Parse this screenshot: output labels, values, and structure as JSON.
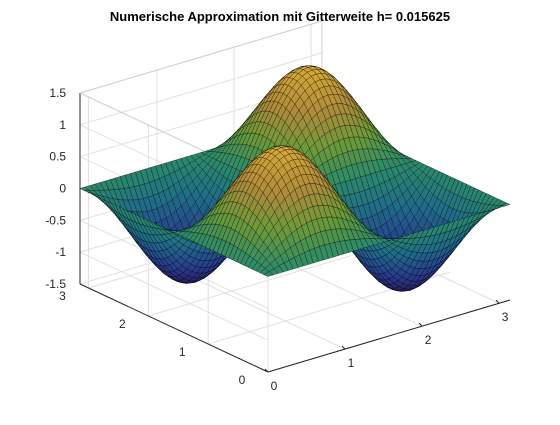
{
  "chart_data": {
    "type": "surface",
    "title": "Numerische Approximation mit Gitterweite h= 0.015625",
    "function": "sin(2x)·sin(2y)·(something ≈ 1.4 peak); rendered as sin(2x)*sin(2y)",
    "h": 0.015625,
    "xlim": [
      0,
      3.14159
    ],
    "ylim": [
      0,
      3.14159
    ],
    "zlim": [
      -1.5,
      1.5
    ],
    "x_ticks": [
      "0",
      "1",
      "2",
      "3"
    ],
    "y_ticks": [
      "0",
      "1",
      "2",
      "3"
    ],
    "z_ticks": [
      "1.5",
      "1",
      "0.5",
      "0",
      "-0.5",
      "-1",
      "-1.5"
    ],
    "amplitude": 1.4,
    "colormap": [
      "#2a1a5e",
      "#283c8c",
      "#1f6b8a",
      "#2a8a6a",
      "#6a9a3a",
      "#b08a3a",
      "#d4a838"
    ],
    "grid": true
  }
}
